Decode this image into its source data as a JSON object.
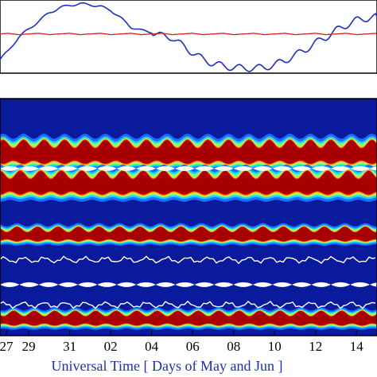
{
  "chart_data": [
    {
      "type": "line",
      "title": "",
      "xlabel": "",
      "ylabel": "",
      "x_days": [
        27.6,
        28,
        28.5,
        29,
        29.5,
        30,
        30.5,
        31,
        31.5,
        32,
        32.5,
        33,
        33.5,
        34,
        34.5,
        35,
        35.5,
        36,
        36.5,
        37,
        37.5,
        38,
        38.5,
        39,
        39.5,
        40,
        40.5,
        41,
        41.5,
        42,
        42.5,
        43,
        43.5,
        44,
        44.5,
        45,
        45.5,
        46.0
      ],
      "series": [
        {
          "color": "#1f2fc0",
          "values": [
            0.18,
            0.3,
            0.5,
            0.62,
            0.74,
            0.86,
            0.93,
            0.97,
            0.99,
            0.98,
            0.95,
            0.9,
            0.78,
            0.65,
            0.6,
            0.58,
            0.52,
            0.5,
            0.38,
            0.28,
            0.18,
            0.12,
            0.08,
            0.06,
            0.05,
            0.05,
            0.06,
            0.1,
            0.16,
            0.24,
            0.32,
            0.42,
            0.5,
            0.6,
            0.68,
            0.75,
            0.78,
            0.8
          ]
        },
        {
          "color": "#cc2222",
          "values": [
            0.55,
            0.56,
            0.54,
            0.55,
            0.56,
            0.54,
            0.55,
            0.56,
            0.54,
            0.55,
            0.56,
            0.54,
            0.55,
            0.56,
            0.54,
            0.55,
            0.56,
            0.54,
            0.55,
            0.56,
            0.54,
            0.55,
            0.56,
            0.54,
            0.55,
            0.56,
            0.54,
            0.55,
            0.56,
            0.54,
            0.55,
            0.56,
            0.54,
            0.55,
            0.56,
            0.54,
            0.55,
            0.56
          ]
        }
      ]
    },
    {
      "type": "heatmap",
      "colormap": "jet",
      "background": "#0a1a9c",
      "bands": [
        {
          "center": 0.23,
          "width": 0.075,
          "ripple": 0.018
        },
        {
          "center": 0.36,
          "width": 0.075,
          "ripple": 0.018
        },
        {
          "center": 0.575,
          "width": 0.045,
          "ripple": 0.012
        },
        {
          "center": 0.93,
          "width": 0.045,
          "ripple": 0.012
        }
      ],
      "white_traces": [
        {
          "level": 0.295,
          "style": "lens"
        },
        {
          "level": 0.68,
          "style": "noisy"
        },
        {
          "level": 0.785,
          "style": "lens"
        },
        {
          "level": 0.87,
          "style": "noisy"
        }
      ]
    }
  ],
  "x_axis": {
    "tick_labels": [
      "27",
      "29",
      "31",
      "02",
      "04",
      "06",
      "08",
      "10",
      "12",
      "14"
    ],
    "label": "Universal Time [ Days of May and Jun ]"
  }
}
